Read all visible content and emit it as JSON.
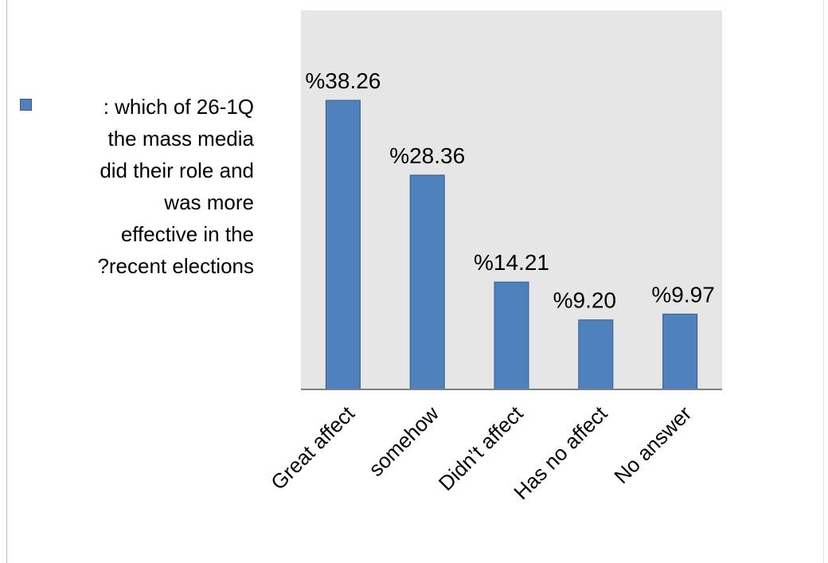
{
  "colors": {
    "plot_background": "#e6e6e6",
    "bar_fill": "#4f81bd",
    "bar_stroke": "#385d8a",
    "axis_line": "#808080"
  },
  "legend": {
    "marker_icon": "square-marker-icon",
    "label_lines": [
      ": which of 26-1Q",
      "the mass media",
      "did their role and",
      "was more",
      "effective in the",
      "?recent elections"
    ]
  },
  "chart_data": {
    "type": "bar",
    "title": "",
    "xlabel": "",
    "ylabel": "",
    "categories": [
      "Great affect",
      "somehow",
      "Didn’t affect",
      "Has no affect",
      "No answer"
    ],
    "series": [
      {
        "name": ": which of 26-1Q the mass media did their role and was more effective in the ?recent elections",
        "values": [
          38.26,
          28.36,
          14.21,
          9.2,
          9.97
        ]
      }
    ],
    "data_labels": [
      "%38.26",
      "%28.36",
      "%14.21",
      "%9.20",
      "%9.97"
    ],
    "ylim": [
      0,
      40
    ],
    "grid": false,
    "legend_position": "left"
  }
}
